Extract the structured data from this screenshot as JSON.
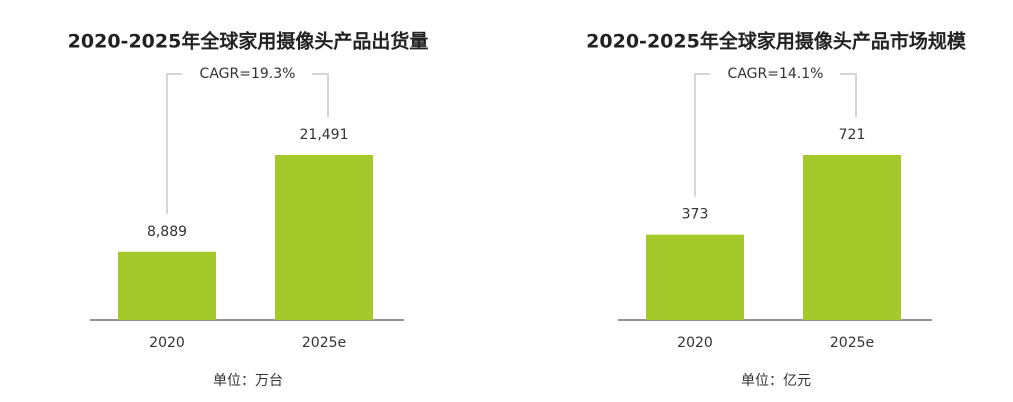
{
  "chart_data": [
    {
      "type": "bar",
      "title": "2020-2025年全球家用摄像头产品出货量",
      "categories": [
        "2020",
        "2025e"
      ],
      "values": [
        8889,
        21491
      ],
      "value_labels": [
        "8,889",
        "21,491"
      ],
      "color": "#a4c92b",
      "annotation": "CAGR=19.3%",
      "unit_note": "单位：万台"
    },
    {
      "type": "bar",
      "title": "2020-2025年全球家用摄像头产品市场规模",
      "categories": [
        "2020",
        "2025e"
      ],
      "values": [
        373,
        721
      ],
      "color": "#a4c92b",
      "annotation": "CAGR=14.1%",
      "unit_note": "单位：亿元"
    }
  ]
}
